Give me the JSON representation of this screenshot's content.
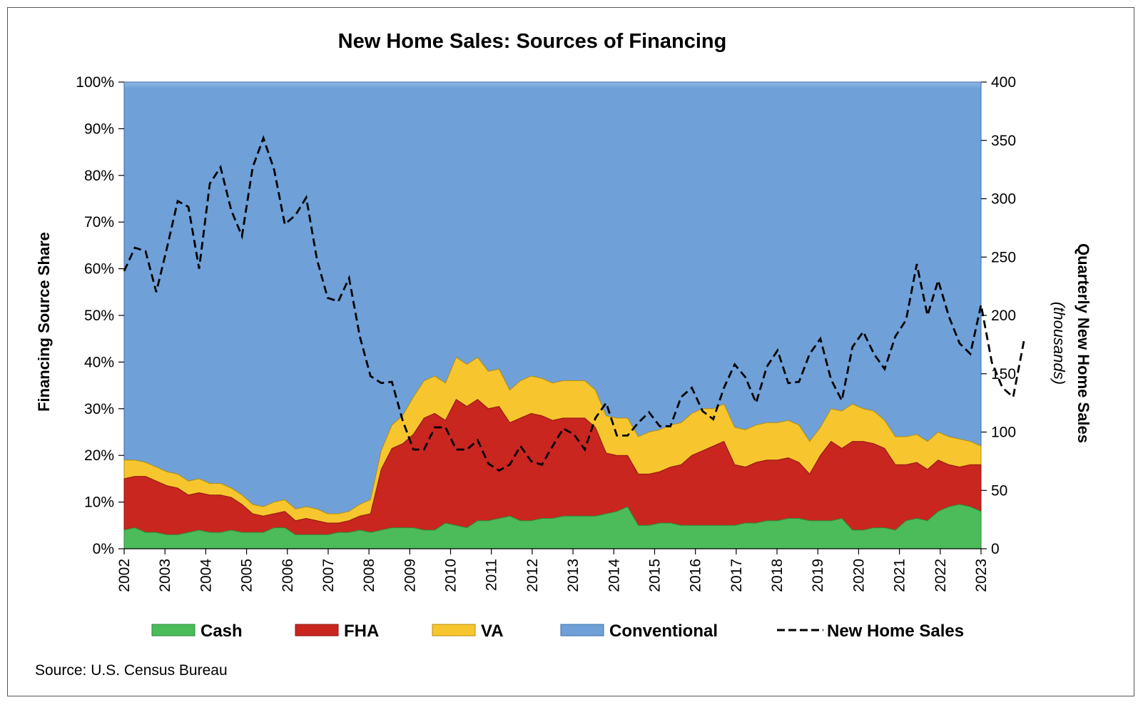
{
  "colors": {
    "cash": "#4cbb5a",
    "fha": "#c8261f",
    "va": "#f7c62f",
    "conventional": "#6fa0d8",
    "sales_line": "#000000"
  },
  "chart_data": {
    "type": "area",
    "title": "New Home Sales: Sources of Financing",
    "ylabel_left": "Financing Source Share",
    "ylabel_right": "Quarterly New Home Sales",
    "ylabel_right_sub": "(thousands)",
    "source": "Source: U.S. Census Bureau",
    "x_start": 2002,
    "x_end": 2023,
    "x_ticks": [
      "2002",
      "2003",
      "2004",
      "2005",
      "2006",
      "2007",
      "2008",
      "2009",
      "2010",
      "2011",
      "2012",
      "2013",
      "2014",
      "2015",
      "2016",
      "2017",
      "2018",
      "2019",
      "2020",
      "2021",
      "2022",
      "2023"
    ],
    "ylim_left": [
      0,
      100
    ],
    "ylim_right": [
      0,
      400
    ],
    "y_ticks_left": [
      "0%",
      "10%",
      "20%",
      "30%",
      "40%",
      "50%",
      "60%",
      "70%",
      "80%",
      "90%",
      "100%"
    ],
    "y_ticks_right": [
      "0",
      "50",
      "100",
      "150",
      "200",
      "250",
      "300",
      "350",
      "400"
    ],
    "legend": [
      "Cash",
      "FHA",
      "VA",
      "Conventional",
      "New Home Sales"
    ],
    "series": [
      {
        "name": "Cash",
        "values": [
          4,
          4.5,
          3.5,
          3.5,
          3,
          3,
          3.5,
          4,
          3.5,
          3.5,
          4,
          3.5,
          3.5,
          3.5,
          4.5,
          4.5,
          3,
          3,
          3,
          3,
          3.5,
          3.5,
          4,
          3.5,
          4,
          4.5,
          4.5,
          4.5,
          4,
          4,
          5.5,
          5,
          4.5,
          6,
          6,
          6.5,
          7,
          6,
          6,
          6.5,
          6.5,
          7,
          7,
          7,
          7,
          7.5,
          8,
          9,
          5,
          5,
          5.5,
          5.5,
          5,
          5,
          5,
          5,
          5,
          5,
          5.5,
          5.5,
          6,
          6,
          6.5,
          6.5,
          6,
          6,
          6,
          6.5,
          4,
          4,
          4.5,
          4.5,
          4,
          6,
          6.5,
          6,
          8,
          9,
          9.5,
          9,
          8
        ]
      },
      {
        "name": "FHA",
        "values": [
          11,
          11,
          12,
          11,
          10.5,
          10,
          8,
          8,
          8,
          8,
          7,
          6,
          4,
          3.5,
          3,
          3.5,
          3,
          3.5,
          3,
          2.5,
          2,
          2.5,
          3,
          4,
          13,
          17,
          18,
          20,
          24,
          25,
          22,
          27,
          26,
          26,
          24,
          24,
          20,
          22,
          23,
          22,
          21,
          21,
          21,
          21,
          19,
          13,
          12,
          11,
          11,
          11,
          11,
          12,
          13,
          15,
          16,
          17,
          18,
          13,
          12,
          13,
          13,
          13,
          13,
          12,
          10,
          14,
          17,
          15,
          19,
          19,
          18,
          17,
          14,
          12,
          12,
          11,
          11,
          9,
          8,
          9,
          10
        ]
      },
      {
        "name": "VA",
        "values": [
          4,
          3.5,
          3,
          3,
          3,
          3,
          3,
          3,
          2.5,
          2.5,
          2,
          2,
          2,
          2,
          2.5,
          2.5,
          2.5,
          2.5,
          2.5,
          2,
          2,
          2,
          2.5,
          3,
          4,
          5,
          6,
          8,
          8,
          8,
          8,
          9,
          9,
          9,
          8,
          8,
          7,
          8,
          8,
          8,
          8,
          8,
          8,
          8,
          8,
          8,
          8,
          8,
          8,
          9,
          9,
          9,
          9,
          9,
          9,
          8,
          8,
          8,
          8,
          8,
          8,
          8,
          8,
          8,
          7,
          6,
          7,
          8,
          8,
          7,
          7,
          6,
          6,
          6,
          6,
          6,
          6,
          6,
          6,
          5,
          4
        ]
      },
      {
        "name": "New Home Sales",
        "axis": "right",
        "values": [
          238,
          258,
          255,
          220,
          258,
          298,
          293,
          240,
          313,
          327,
          290,
          268,
          327,
          352,
          325,
          278,
          286,
          301,
          248,
          215,
          212,
          232,
          182,
          148,
          142,
          143,
          110,
          85,
          85,
          104,
          104,
          85,
          85,
          93,
          73,
          67,
          72,
          88,
          75,
          72,
          88,
          103,
          98,
          85,
          112,
          125,
          97,
          97,
          108,
          117,
          105,
          105,
          130,
          138,
          118,
          111,
          138,
          158,
          147,
          125,
          156,
          170,
          142,
          143,
          167,
          180,
          145,
          127,
          173,
          186,
          167,
          154,
          182,
          196,
          244,
          200,
          230,
          199,
          176,
          167,
          209,
          160,
          138,
          130,
          178
        ]
      }
    ]
  }
}
